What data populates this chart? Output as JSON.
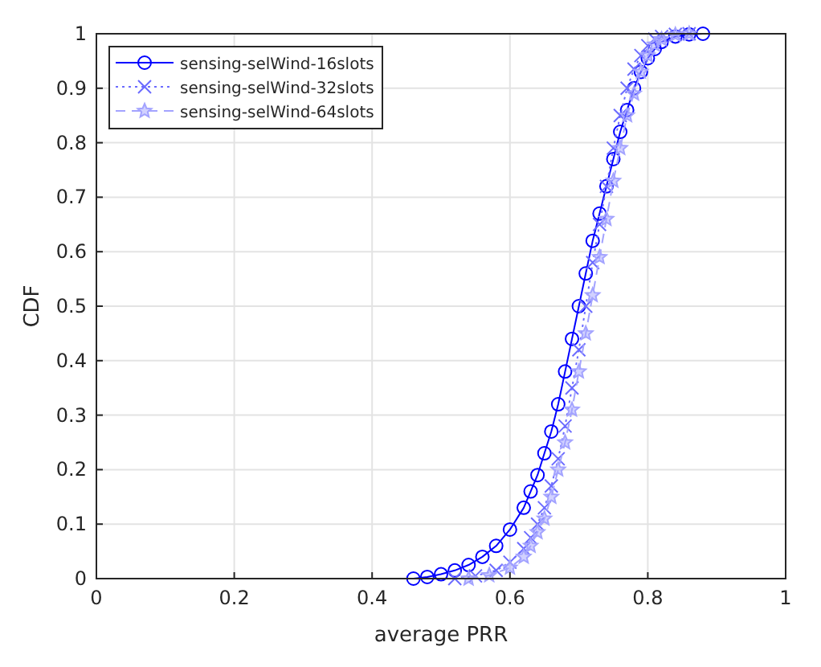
{
  "chart_data": {
    "type": "line",
    "xlabel": "average PRR",
    "ylabel": "CDF",
    "xlim": [
      0,
      1
    ],
    "ylim": [
      0,
      1
    ],
    "xticks": [
      0,
      0.2,
      0.4,
      0.6,
      0.8,
      1
    ],
    "yticks": [
      0,
      0.1,
      0.2,
      0.3,
      0.4,
      0.5,
      0.6,
      0.7,
      0.8,
      0.9,
      1
    ],
    "grid": true,
    "legend": "top left",
    "series": [
      {
        "name": "sensing-selWind-16slots",
        "color": "#0000ff",
        "marker": "circle",
        "line_style": "solid",
        "x": [
          0.46,
          0.48,
          0.5,
          0.52,
          0.54,
          0.56,
          0.58,
          0.6,
          0.62,
          0.63,
          0.64,
          0.65,
          0.66,
          0.67,
          0.68,
          0.69,
          0.7,
          0.71,
          0.72,
          0.73,
          0.74,
          0.75,
          0.76,
          0.77,
          0.78,
          0.79,
          0.8,
          0.81,
          0.82,
          0.84,
          0.86,
          0.88
        ],
        "values": [
          0,
          0.003,
          0.008,
          0.015,
          0.025,
          0.04,
          0.06,
          0.09,
          0.13,
          0.16,
          0.19,
          0.23,
          0.27,
          0.32,
          0.38,
          0.44,
          0.5,
          0.56,
          0.62,
          0.67,
          0.72,
          0.77,
          0.82,
          0.86,
          0.9,
          0.93,
          0.955,
          0.972,
          0.985,
          0.995,
          0.999,
          1
        ]
      },
      {
        "name": "sensing-selWind-32slots",
        "color": "#6b6bff",
        "marker": "cross",
        "line_style": "dotted",
        "x": [
          0.52,
          0.55,
          0.58,
          0.6,
          0.62,
          0.63,
          0.64,
          0.65,
          0.66,
          0.67,
          0.68,
          0.69,
          0.7,
          0.71,
          0.72,
          0.73,
          0.74,
          0.75,
          0.76,
          0.77,
          0.78,
          0.79,
          0.8,
          0.81,
          0.82,
          0.84,
          0.86
        ],
        "values": [
          0,
          0.005,
          0.015,
          0.03,
          0.055,
          0.075,
          0.1,
          0.13,
          0.17,
          0.22,
          0.28,
          0.35,
          0.42,
          0.5,
          0.58,
          0.65,
          0.72,
          0.79,
          0.85,
          0.9,
          0.935,
          0.96,
          0.978,
          0.99,
          0.995,
          0.999,
          1
        ]
      },
      {
        "name": "sensing-selWind-64slots",
        "color": "#a3a3ff",
        "marker": "star",
        "line_style": "dashed",
        "x": [
          0.54,
          0.57,
          0.6,
          0.62,
          0.63,
          0.64,
          0.65,
          0.66,
          0.67,
          0.68,
          0.69,
          0.7,
          0.71,
          0.72,
          0.73,
          0.74,
          0.75,
          0.76,
          0.77,
          0.78,
          0.79,
          0.8,
          0.81,
          0.82,
          0.84,
          0.86
        ],
        "values": [
          0,
          0.006,
          0.02,
          0.04,
          0.06,
          0.085,
          0.11,
          0.15,
          0.2,
          0.25,
          0.31,
          0.38,
          0.45,
          0.52,
          0.59,
          0.66,
          0.73,
          0.79,
          0.85,
          0.89,
          0.93,
          0.96,
          0.98,
          0.99,
          0.998,
          1
        ]
      }
    ]
  }
}
